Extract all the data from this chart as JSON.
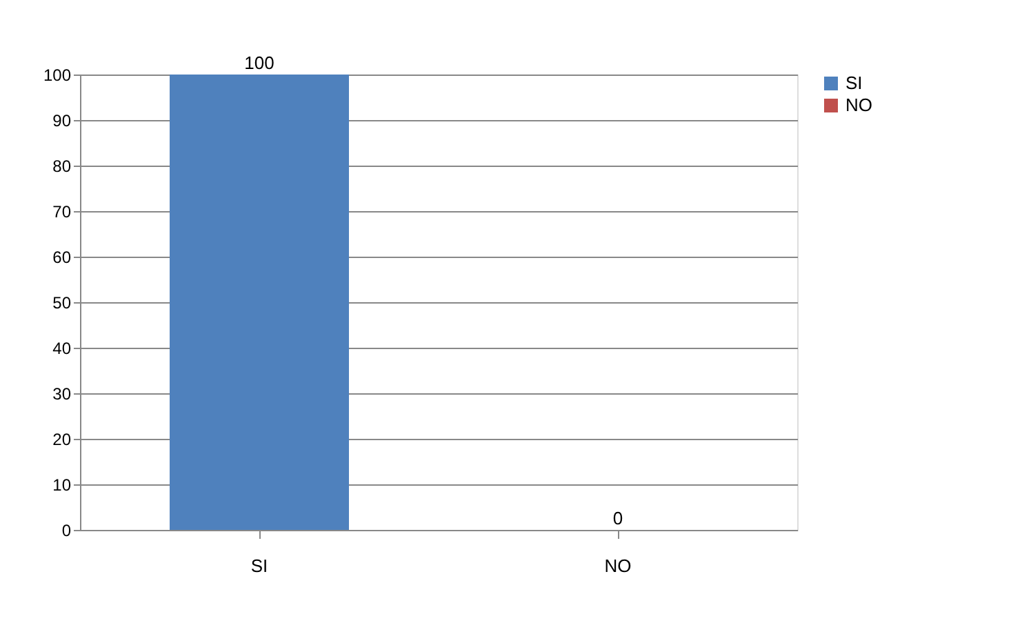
{
  "chart_data": {
    "type": "bar",
    "categories": [
      "SI",
      "NO"
    ],
    "series": [
      {
        "name": "SI",
        "color": "#4f81bd",
        "values": [
          100,
          null
        ]
      },
      {
        "name": "NO",
        "color": "#c0504d",
        "values": [
          null,
          0
        ]
      }
    ],
    "ylim": [
      0,
      100
    ],
    "yticks": [
      0,
      10,
      20,
      30,
      40,
      50,
      60,
      70,
      80,
      90,
      100
    ],
    "grid": "y",
    "legend": "right",
    "data_labels": true
  }
}
